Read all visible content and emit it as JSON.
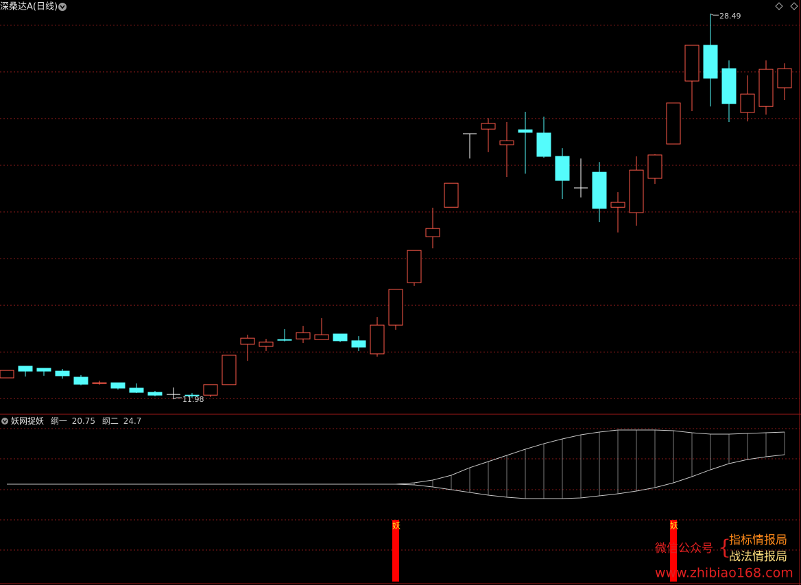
{
  "chart_data": [
    {
      "type": "candlestick",
      "title": "深桑达A(日线)",
      "open": [
        12.89,
        13.39,
        13.3,
        13.18,
        12.92,
        12.65,
        12.68,
        12.45,
        12.27,
        12.18,
        12.15,
        12.15,
        12.6,
        14.33,
        14.24,
        14.53,
        14.56,
        14.53,
        14.77,
        14.48,
        13.92,
        15.15,
        16.97,
        18.94,
        20.2,
        23.35,
        23.55,
        22.88,
        23.52,
        23.38,
        22.38,
        21.03,
        21.7,
        20.2,
        19.97,
        21.44,
        22.91,
        25.61,
        27.14,
        26.14,
        24.26,
        24.52,
        25.32
      ],
      "high": [
        13.21,
        13.39,
        13.3,
        13.27,
        13.01,
        12.77,
        12.68,
        12.65,
        12.33,
        12.48,
        12.24,
        12.6,
        13.86,
        14.74,
        14.56,
        14.98,
        15.12,
        15.45,
        14.77,
        14.68,
        15.5,
        16.68,
        18.35,
        20.18,
        21.23,
        23.35,
        24.02,
        23.85,
        24.29,
        24.08,
        22.73,
        22.29,
        22.14,
        20.85,
        22.38,
        22.47,
        24.67,
        27.14,
        28.49,
        26.49,
        25.85,
        26.49,
        26.37
      ],
      "low": [
        12.89,
        12.95,
        12.98,
        12.86,
        12.57,
        12.6,
        12.39,
        12.24,
        12.1,
        11.98,
        12.04,
        12.07,
        12.6,
        13.62,
        14.04,
        14.45,
        14.39,
        14.53,
        14.42,
        14.04,
        13.8,
        14.95,
        16.83,
        18.44,
        20.2,
        22.29,
        22.56,
        21.5,
        21.64,
        22.32,
        20.56,
        20.62,
        19.56,
        19.12,
        19.41,
        21.2,
        22.91,
        24.32,
        24.52,
        23.85,
        23.88,
        24.17,
        24.79
      ],
      "close": [
        13.21,
        13.18,
        13.18,
        12.98,
        12.62,
        12.68,
        12.45,
        12.27,
        12.15,
        12.18,
        12.13,
        12.6,
        13.86,
        14.59,
        14.42,
        14.51,
        14.83,
        14.74,
        14.48,
        14.21,
        15.15,
        16.68,
        18.35,
        19.29,
        21.23,
        23.35,
        23.79,
        23.05,
        23.41,
        22.38,
        21.35,
        21.03,
        20.15,
        20.41,
        21.79,
        22.44,
        24.67,
        27.14,
        25.73,
        24.64,
        25.05,
        26.11,
        26.14
      ],
      "up_color": "#ff5a4a",
      "down_color": "#54fcfc",
      "flat_color": "#ffffff",
      "ylim": [
        11.45,
        29.08
      ],
      "yticks": [
        12,
        14,
        16,
        18,
        20,
        22,
        24,
        26,
        28
      ],
      "grid": true
    },
    {
      "type": "line",
      "title": "妖网捉妖",
      "series": [
        {
          "name": "纲一",
          "color": "#c8c8c8",
          "values": [
            15.6,
            15.6,
            15.6,
            15.6,
            15.6,
            15.6,
            15.6,
            15.6,
            15.6,
            15.6,
            15.6,
            15.6,
            15.6,
            15.6,
            15.6,
            15.6,
            15.6,
            15.6,
            15.6,
            15.6,
            15.6,
            15.6,
            15.48,
            15.12,
            14.65,
            14.17,
            13.69,
            13.33,
            13.09,
            13.09,
            13.09,
            13.21,
            13.57,
            13.93,
            14.41,
            15.0,
            15.84,
            16.92,
            18.12,
            19.19,
            19.91,
            20.39,
            20.75
          ]
        },
        {
          "name": "纲二",
          "color": "#c8c8c8",
          "values": [
            15.6,
            15.6,
            15.6,
            15.6,
            15.6,
            15.6,
            15.6,
            15.6,
            15.6,
            15.6,
            15.6,
            15.6,
            15.6,
            15.6,
            15.6,
            15.6,
            15.6,
            15.6,
            15.6,
            15.6,
            15.6,
            15.6,
            15.84,
            16.32,
            17.16,
            18.48,
            19.55,
            20.63,
            21.71,
            22.67,
            23.5,
            24.22,
            24.7,
            25.06,
            25.06,
            25.06,
            24.94,
            24.58,
            24.34,
            24.34,
            24.46,
            24.58,
            24.7
          ]
        },
        {
          "name": "妖",
          "color": "#ff0000",
          "axis": "y2",
          "values": [
            null,
            null,
            null,
            null,
            null,
            null,
            null,
            null,
            null,
            null,
            null,
            null,
            null,
            null,
            null,
            null,
            null,
            null,
            null,
            null,
            null,
            1,
            null,
            null,
            null,
            null,
            null,
            null,
            null,
            null,
            null,
            null,
            null,
            null,
            null,
            null,
            1,
            null,
            null,
            null,
            null,
            null,
            null
          ]
        }
      ],
      "ylim": [
        -1.63,
        27.69
      ],
      "yticks": [
        25.3,
        20.03,
        14.65,
        9.38,
        4.11
      ],
      "y2lim": [
        0,
        1
      ],
      "grid": true
    }
  ],
  "watermark": {
    "label": "微信公众号",
    "lines": [
      "指标情报局",
      "战法情报局"
    ],
    "url": "www.zhibiao168.com"
  }
}
